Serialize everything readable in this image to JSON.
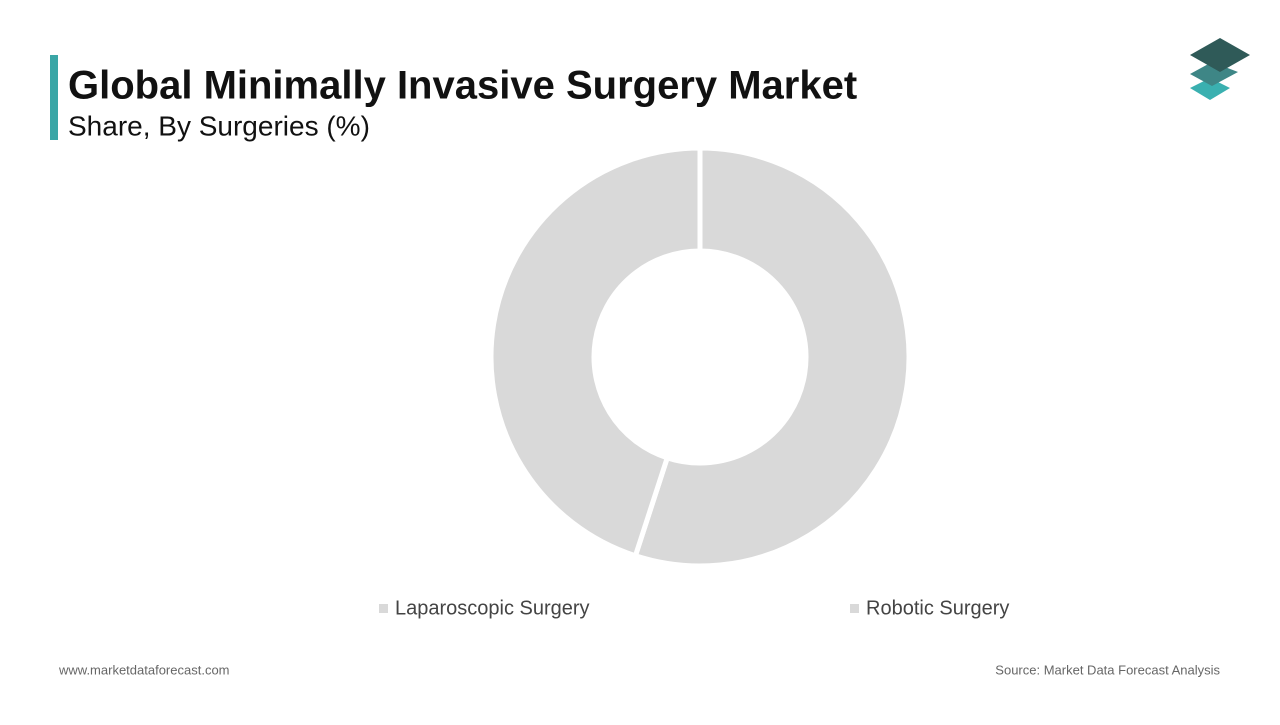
{
  "chart_data": {
    "type": "donut",
    "title": "Global Minimally Invasive Surgery Market",
    "subtitle": "Share, By Surgeries (%)",
    "categories": [
      "Robotic Surgery",
      "Laparoscopic Surgery"
    ],
    "values": [
      55,
      45
    ],
    "colors": [
      "#d9d9d9",
      "#d9d9d9"
    ],
    "legend": "bottom"
  },
  "footer": {
    "website": "www.marketdataforecast.com",
    "source": "Source: Market Data Forecast Analysis"
  }
}
